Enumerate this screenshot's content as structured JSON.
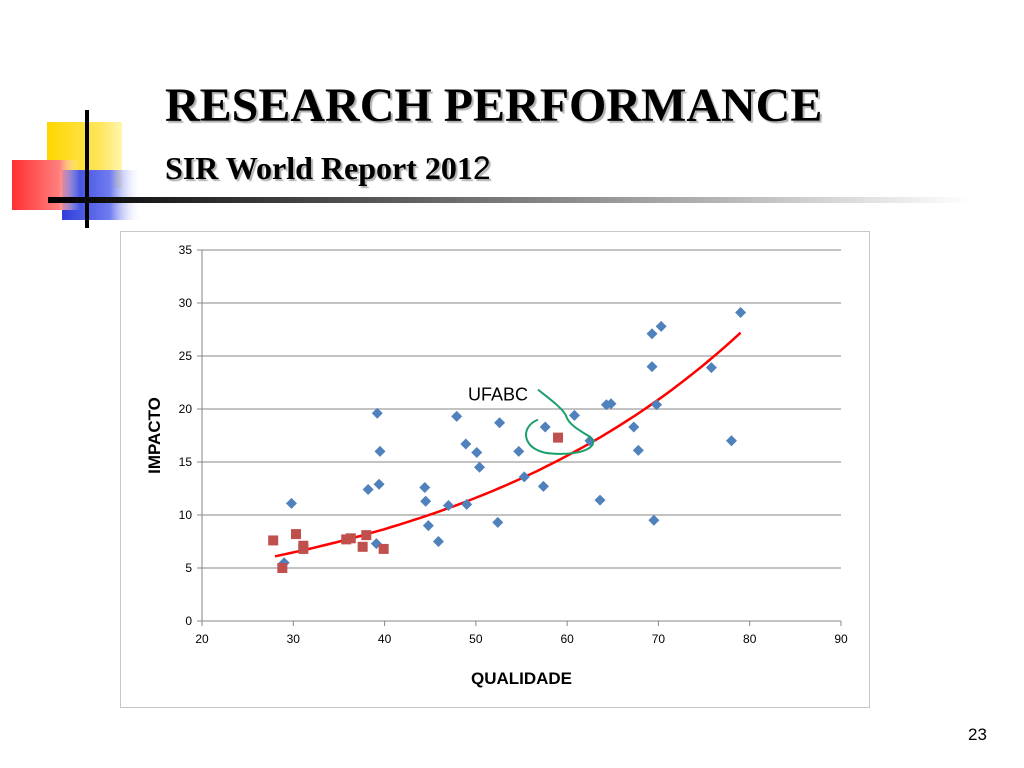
{
  "slide": {
    "title": "RESEARCH PERFORMANCE",
    "subtitle_main": "SIR World Report 201",
    "subtitle_tail": "2",
    "page_number": "23"
  },
  "colors": {
    "series_blue": "#4f81bd",
    "series_red": "#c0504d",
    "trend": "#ff0000",
    "annotation": "#1aa06a",
    "grid": "#878787"
  },
  "chart_data": {
    "type": "scatter",
    "title": "",
    "xlabel": "QUALIDADE",
    "ylabel": "IMPACTO",
    "xlim": [
      20,
      90
    ],
    "ylim": [
      0,
      35
    ],
    "x_ticks": [
      20,
      30,
      40,
      50,
      60,
      70,
      80,
      90
    ],
    "y_ticks": [
      0,
      5,
      10,
      15,
      20,
      25,
      30,
      35
    ],
    "grid": "horizontal",
    "legend": "none",
    "annotation": {
      "text": "UFABC",
      "x": 59,
      "y": 17.3
    },
    "series": [
      {
        "marker": "diamond",
        "color": "#4f81bd",
        "points": [
          [
            29,
            5.5
          ],
          [
            29.8,
            11.1
          ],
          [
            38.2,
            12.4
          ],
          [
            39.1,
            7.3
          ],
          [
            39.2,
            19.6
          ],
          [
            39.4,
            12.9
          ],
          [
            39.5,
            16.0
          ],
          [
            44.4,
            12.6
          ],
          [
            44.5,
            11.3
          ],
          [
            44.8,
            9.0
          ],
          [
            45.9,
            7.5
          ],
          [
            47.0,
            10.9
          ],
          [
            47.9,
            19.3
          ],
          [
            48.9,
            16.7
          ],
          [
            49.0,
            11.0
          ],
          [
            50.1,
            15.9
          ],
          [
            50.4,
            14.5
          ],
          [
            52.4,
            9.3
          ],
          [
            52.6,
            18.7
          ],
          [
            54.7,
            16.0
          ],
          [
            55.3,
            13.6
          ],
          [
            57.4,
            12.7
          ],
          [
            57.6,
            18.3
          ],
          [
            60.8,
            19.4
          ],
          [
            62.5,
            17.0
          ],
          [
            63.6,
            11.4
          ],
          [
            64.3,
            20.4
          ],
          [
            64.8,
            20.5
          ],
          [
            67.3,
            18.3
          ],
          [
            67.8,
            16.1
          ],
          [
            69.3,
            24.0
          ],
          [
            69.3,
            27.1
          ],
          [
            69.5,
            9.5
          ],
          [
            69.8,
            20.4
          ],
          [
            70.3,
            27.8
          ],
          [
            75.8,
            23.9
          ],
          [
            78.0,
            17.0
          ],
          [
            79.0,
            29.1
          ]
        ]
      },
      {
        "marker": "square",
        "color": "#c0504d",
        "points": [
          [
            27.8,
            7.6
          ],
          [
            28.8,
            5.0
          ],
          [
            30.3,
            8.2
          ],
          [
            31.1,
            7.1
          ],
          [
            31.1,
            6.8
          ],
          [
            35.8,
            7.7
          ],
          [
            36.3,
            7.8
          ],
          [
            37.6,
            7.0
          ],
          [
            38.0,
            8.1
          ],
          [
            39.9,
            6.8
          ],
          [
            59.0,
            17.3
          ]
        ]
      }
    ],
    "trendline": {
      "type": "exponential",
      "x_range": [
        28,
        79
      ],
      "y_start": 6.1,
      "y_end": 27.2
    }
  }
}
